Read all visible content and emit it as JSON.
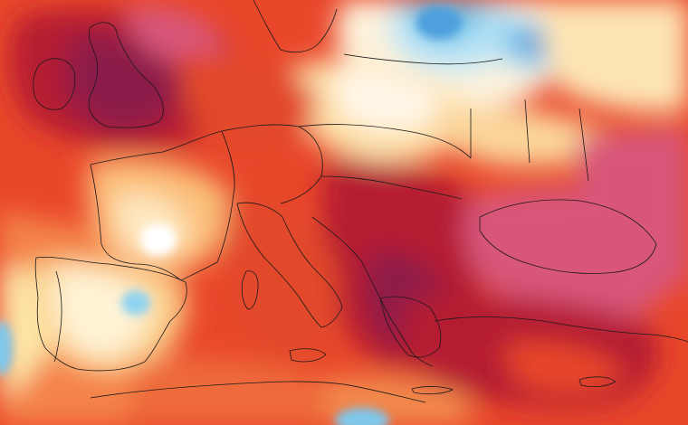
{
  "map": {
    "kind": "temperature anomaly heat map",
    "region": "Europe",
    "has_text": false,
    "palette": {
      "strong_negative": "#2f7fd1",
      "negative": "#7fd0ef",
      "slight_negative": "#d7f1fb",
      "neutral": "#ffffff",
      "slight_positive": "#fde7a8",
      "warm": "#f6a15b",
      "hot": "#e9472a",
      "very_hot": "#b51d30",
      "extreme_hot": "#8c1e48",
      "pink_extreme": "#d8567a",
      "borders": "#1a1a1a"
    }
  }
}
